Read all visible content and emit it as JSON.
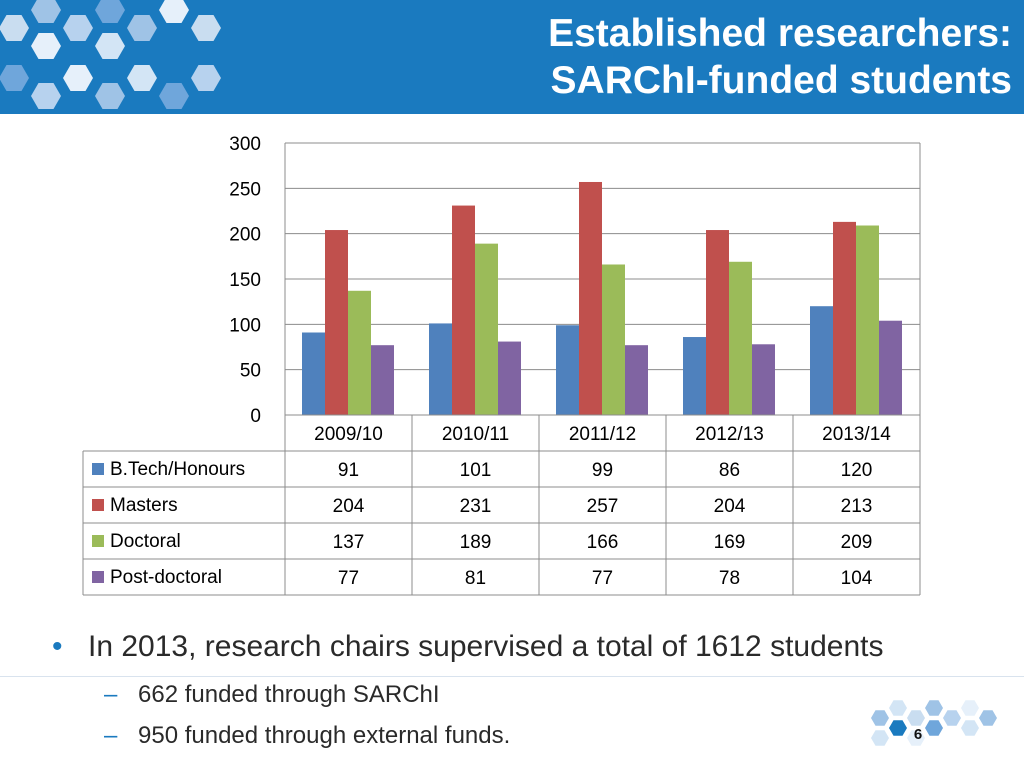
{
  "header": {
    "title_line1": "Established researchers:",
    "title_line2": "SARChI-funded students"
  },
  "colors": {
    "header_bg": "#1a7abf",
    "series": [
      "#4f81bd",
      "#c0504d",
      "#9bbb59",
      "#8064a2"
    ]
  },
  "chart_data": {
    "type": "bar",
    "categories": [
      "2009/10",
      "2010/11",
      "2011/12",
      "2012/13",
      "2013/14"
    ],
    "series": [
      {
        "name": "B.Tech/Honours",
        "values": [
          91,
          101,
          99,
          86,
          120
        ]
      },
      {
        "name": "Masters",
        "values": [
          204,
          231,
          257,
          204,
          213
        ]
      },
      {
        "name": "Doctoral",
        "values": [
          137,
          189,
          166,
          169,
          209
        ]
      },
      {
        "name": "Post-doctoral",
        "values": [
          77,
          81,
          77,
          78,
          104
        ]
      }
    ],
    "ylim": [
      0,
      300
    ],
    "yticks": [
      0,
      50,
      100,
      150,
      200,
      250,
      300
    ],
    "grid": true,
    "legend": "data-table"
  },
  "bullets": {
    "main": "In 2013, research chairs supervised a total of 1612 students",
    "sub": [
      "662 funded through SARChI",
      "950 funded through external funds."
    ]
  },
  "footer": {
    "page_number": "6"
  }
}
